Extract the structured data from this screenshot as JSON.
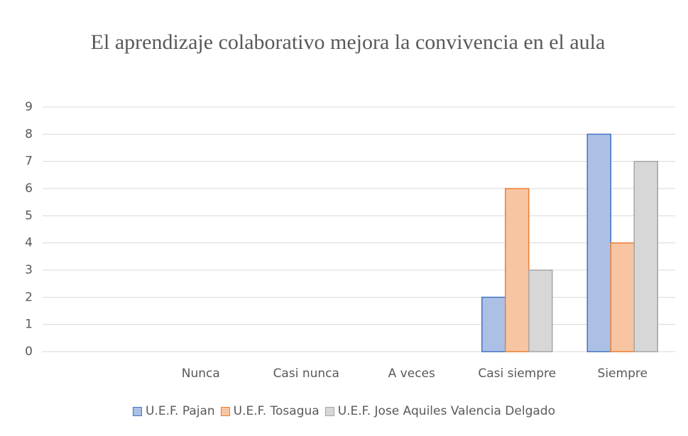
{
  "chart_data": {
    "type": "bar",
    "title": "El aprendizaje colaborativo mejora la convivencia en el aula",
    "categories": [
      null,
      "Nunca",
      "Casi nunca",
      "A veces",
      "Casi siempre",
      "Siempre"
    ],
    "series": [
      {
        "name": "U.E.F. Pajan",
        "color": "#4472c4",
        "values": [
          null,
          0,
          0,
          0,
          2,
          8
        ]
      },
      {
        "name": "U.E.F. Tosagua",
        "color": "#ed7d31",
        "values": [
          null,
          0,
          0,
          0,
          6,
          4
        ]
      },
      {
        "name": "U.E.F. Jose Aquiles Valencia Delgado",
        "color": "#a5a5a5",
        "values": [
          null,
          0,
          0,
          0,
          3,
          7
        ]
      }
    ],
    "ylim": [
      0,
      9
    ],
    "yticks": [
      0,
      1,
      2,
      3,
      4,
      5,
      6,
      7,
      8,
      9
    ],
    "grid": true,
    "legend": "bottom"
  }
}
